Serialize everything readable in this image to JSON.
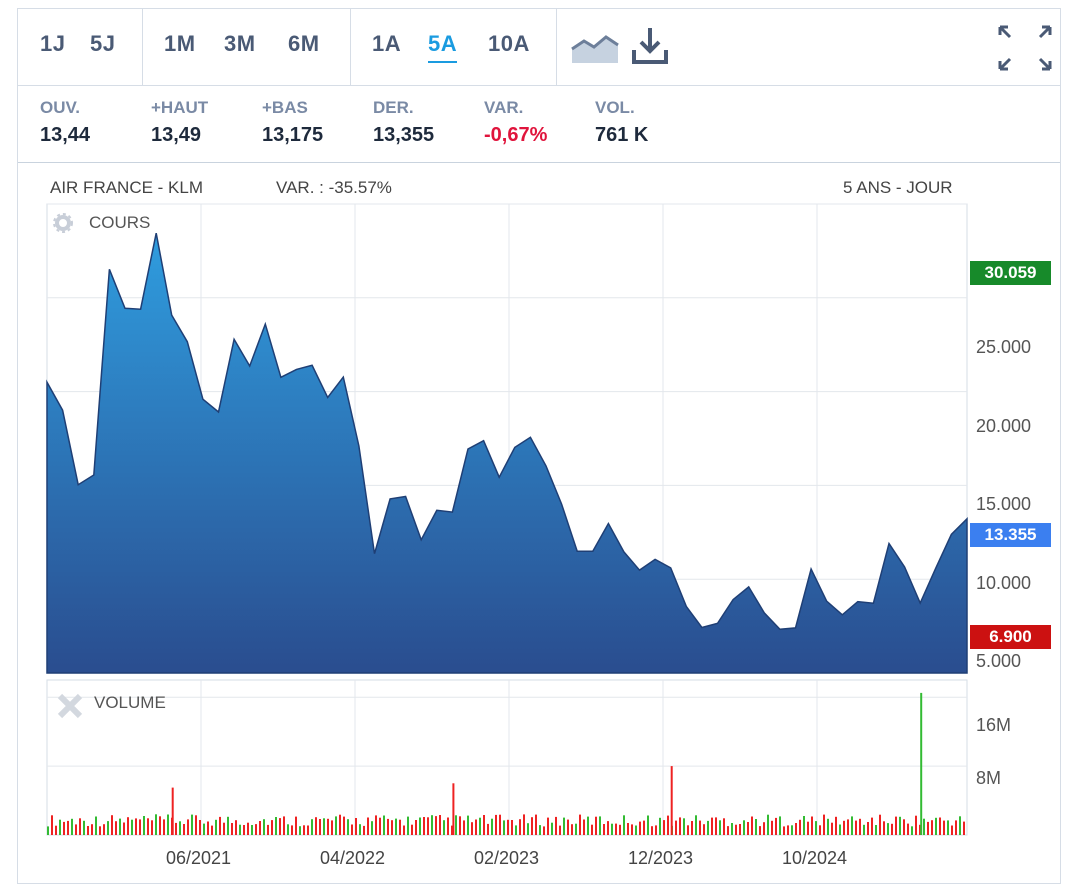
{
  "periods": {
    "group1": [
      "1J",
      "5J"
    ],
    "group2": [
      "1M",
      "3M",
      "6M"
    ],
    "group3": [
      "1A",
      "5A",
      "10A"
    ],
    "active": "5A"
  },
  "stats": [
    {
      "label": "OUV.",
      "value": "13,44"
    },
    {
      "label": "+HAUT",
      "value": "13,49"
    },
    {
      "label": "+BAS",
      "value": "13,175"
    },
    {
      "label": "DER.",
      "value": "13,355"
    },
    {
      "label": "VAR.",
      "value": "-0,67%"
    },
    {
      "label": "VOL.",
      "value": "761 K"
    }
  ],
  "header": {
    "name": "AIR FRANCE - KLM",
    "variation": "VAR. : -35.57%",
    "range": "5 ANS - JOUR"
  },
  "price_panel": {
    "title": "COURS",
    "max_tag": "30.059",
    "last_tag": "13.355",
    "min_tag": "6.900"
  },
  "volume_panel": {
    "title": "VOLUME"
  },
  "colors": {
    "area_top": "#2f9ddf",
    "area_bottom": "#2a4d8f",
    "line": "#1f3f75",
    "max": "#178a2a",
    "last": "#3b7ff0",
    "min": "#cc1111",
    "vol_up": "#33bb33",
    "vol_down": "#ee2222",
    "active": "#1a9be0"
  },
  "chart_data": [
    {
      "type": "area",
      "title": "COURS",
      "x": [
        "2020-08",
        "2020-09",
        "2020-10",
        "2020-11",
        "2020-12",
        "2021-01",
        "2021-02",
        "2021-03",
        "2021-04",
        "2021-05",
        "2021-06",
        "2021-07",
        "2021-08",
        "2021-09",
        "2021-10",
        "2021-11",
        "2021-12",
        "2022-01",
        "2022-02",
        "2022-03",
        "2022-04",
        "2022-05",
        "2022-06",
        "2022-07",
        "2022-08",
        "2022-09",
        "2022-10",
        "2022-11",
        "2022-12",
        "2023-01",
        "2023-02",
        "2023-03",
        "2023-04",
        "2023-05",
        "2023-06",
        "2023-07",
        "2023-08",
        "2023-09",
        "2023-10",
        "2023-11",
        "2023-12",
        "2024-01",
        "2024-02",
        "2024-03",
        "2024-04",
        "2024-05",
        "2024-06",
        "2024-07",
        "2024-08",
        "2024-09",
        "2024-10",
        "2024-11",
        "2024-12",
        "2025-01",
        "2025-02",
        "2025-03",
        "2025-04",
        "2025-05",
        "2025-06",
        "2025-07"
      ],
      "y": [
        20.5,
        18.5,
        14.5,
        15.5,
        27.0,
        25.0,
        24.5,
        28.0,
        23.5,
        22.5,
        20.0,
        19.5,
        23.0,
        21.0,
        23.0,
        20.5,
        21.5,
        22.0,
        20.0,
        20.5,
        16.5,
        11.0,
        14.5,
        15.0,
        12.5,
        13.5,
        13.0,
        16.5,
        17.5,
        16.0,
        17.5,
        17.5,
        15.5,
        13.5,
        11.5,
        12.0,
        13.5,
        11.5,
        10.0,
        10.5,
        10.5,
        9.0,
        8.0,
        7.8,
        8.5,
        9.0,
        8.0,
        7.7,
        8.0,
        10.8,
        8.5,
        7.5,
        8.5,
        9.0,
        12.5,
        11.0,
        8.5,
        10.0,
        12.0,
        13.4
      ],
      "xticks": [
        "06/2021",
        "04/2022",
        "02/2023",
        "12/2023",
        "10/2024"
      ],
      "yticks": [
        "5.000",
        "10.000",
        "15.000",
        "20.000",
        "25.000"
      ],
      "ylim": [
        5,
        30
      ],
      "max": 30.059,
      "last": 13.355,
      "min": 6.9
    },
    {
      "type": "bar",
      "title": "VOLUME",
      "yticks": [
        "8M",
        "16M"
      ],
      "ylim": [
        0,
        18
      ],
      "spikes": [
        {
          "x": "2021-04",
          "value": 5.5
        },
        {
          "x": "2022-10",
          "value": 6.0
        },
        {
          "x": "2023-12",
          "value": 8.0
        },
        {
          "x": "2025-04",
          "value": 16.5
        }
      ],
      "baseline": 1.0
    }
  ]
}
